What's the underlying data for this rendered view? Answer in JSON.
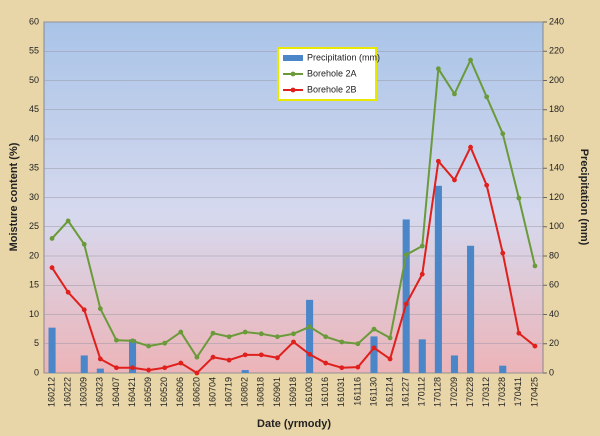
{
  "chart_data": {
    "type": "bar-line",
    "xlabel": "Date (yrmody)",
    "ylabel": "Moisture content (%)",
    "y2label": "Precipitation (mm)",
    "categories": [
      "160212",
      "160222",
      "160309",
      "160323",
      "160407",
      "160421",
      "160509",
      "160520",
      "160606",
      "160620",
      "160704",
      "160719",
      "160802",
      "160818",
      "160901",
      "160918",
      "161003",
      "161016",
      "161031",
      "161116",
      "161130",
      "161214",
      "161227",
      "170112",
      "170128",
      "170209",
      "170228",
      "170312",
      "170328",
      "170411",
      "170425"
    ],
    "series": [
      {
        "name": "Precipitation (mm)",
        "type": "bar",
        "axis": "y2",
        "color": "#4a86c8",
        "values": [
          31,
          0,
          12,
          3,
          0,
          23,
          0,
          0,
          0,
          0,
          0,
          0,
          2,
          0,
          0,
          0,
          50,
          0,
          0,
          0,
          25,
          0,
          105,
          23,
          128,
          12,
          87,
          0,
          5,
          0,
          0
        ]
      },
      {
        "name": "Borehole 2A",
        "type": "line",
        "axis": "y",
        "color": "#6a9a3a",
        "values": [
          23,
          26,
          22,
          11,
          5.6,
          5.5,
          4.6,
          5.1,
          7,
          2.7,
          6.8,
          6.2,
          7,
          6.7,
          6.2,
          6.7,
          7.9,
          6.2,
          5.3,
          5,
          7.5,
          6,
          20.2,
          21.7,
          52,
          47.7,
          53.5,
          47.2,
          40.9,
          29.9,
          18.3
        ]
      },
      {
        "name": "Borehole 2B",
        "type": "line",
        "axis": "y",
        "color": "#e0201c",
        "values": [
          18,
          13.8,
          10.8,
          2.4,
          0.9,
          0.9,
          0.5,
          0.9,
          1.7,
          0,
          2.7,
          2.2,
          3.1,
          3.1,
          2.6,
          5.3,
          3.2,
          1.7,
          0.9,
          1,
          4.3,
          2.4,
          11.8,
          16.9,
          36.2,
          33,
          38.6,
          32.1,
          20.5,
          6.8,
          4.6
        ]
      }
    ],
    "ylim": [
      0,
      60
    ],
    "yticks": [
      0,
      5,
      10,
      15,
      20,
      25,
      30,
      35,
      40,
      45,
      50,
      55,
      60
    ],
    "y2lim": [
      0,
      240
    ],
    "y2ticks": [
      0,
      20,
      40,
      60,
      80,
      100,
      120,
      140,
      160,
      180,
      200,
      220,
      240
    ],
    "grid": true,
    "legend": "top"
  }
}
